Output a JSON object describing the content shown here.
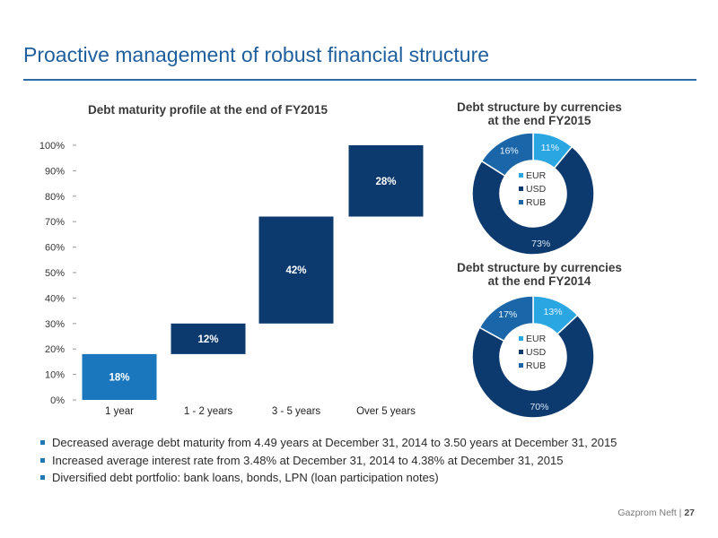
{
  "header": {
    "title": "Proactive management of robust financial structure"
  },
  "chart_data": [
    {
      "type": "bar",
      "subtype": "waterfall",
      "title": "Debt maturity profile at the end of FY2015",
      "categories": [
        "1 year",
        "1 - 2 years",
        "3 - 5 years",
        "Over 5 years"
      ],
      "values": [
        18,
        12,
        42,
        28
      ],
      "data_labels": [
        "18%",
        "12%",
        "42%",
        "28%"
      ],
      "ylim": [
        0,
        100
      ],
      "y_ticks": [
        "0%",
        "10%",
        "20%",
        "30%",
        "40%",
        "50%",
        "60%",
        "70%",
        "80%",
        "90%",
        "100%"
      ],
      "colors": [
        "#1a77bd",
        "#0d3a6e",
        "#0d3a6e",
        "#0d3a6e"
      ],
      "grid": false
    },
    {
      "type": "pie",
      "subtype": "donut",
      "title": "Debt structure by currencies at the end FY2015",
      "title_lines": [
        "Debt structure by currencies",
        "at the end FY2015"
      ],
      "categories": [
        "EUR",
        "USD",
        "RUB"
      ],
      "values": [
        11,
        73,
        16
      ],
      "data_labels": [
        "11%",
        "73%",
        "16%"
      ],
      "colors": [
        "#2aa6e2",
        "#0d3a6e",
        "#1a66a8"
      ],
      "legend": "center"
    },
    {
      "type": "pie",
      "subtype": "donut",
      "title": "Debt structure by currencies at the end FY2014",
      "title_lines": [
        "Debt structure by currencies",
        "at the end FY2014"
      ],
      "categories": [
        "EUR",
        "USD",
        "RUB"
      ],
      "values": [
        13,
        70,
        17
      ],
      "data_labels": [
        "13%",
        "70%",
        "17%"
      ],
      "colors": [
        "#2aa6e2",
        "#0d3a6e",
        "#1a66a8"
      ],
      "legend": "center"
    }
  ],
  "bullets": [
    "Decreased average debt maturity from 4.49 years at December 31, 2014 to 3.50 years at December 31, 2015",
    "Increased average interest rate from 3.48% at December 31, 2014 to 4.38% at December 31, 2015",
    "Diversified debt portfolio: bank loans, bonds, LPN (loan participation notes)"
  ],
  "footer": {
    "company": "Gazprom Neft |",
    "page": "27"
  }
}
